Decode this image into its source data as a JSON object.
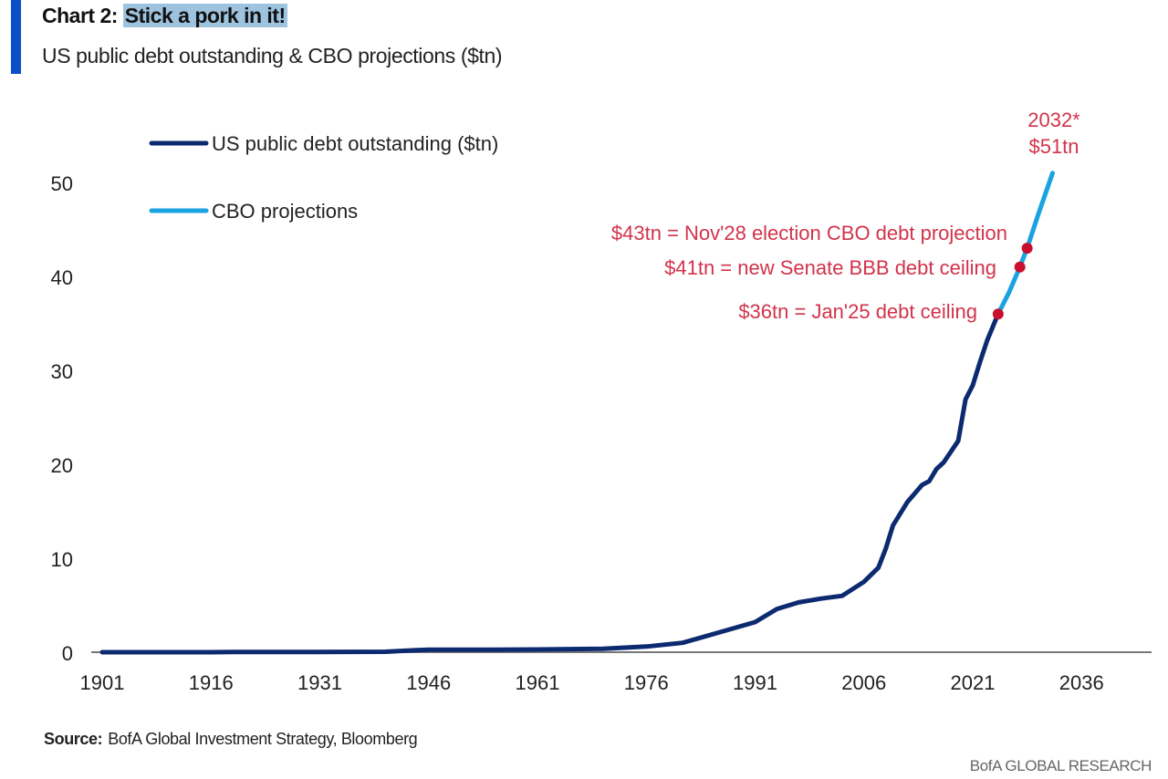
{
  "header": {
    "title_prefix": "Chart 2:",
    "title_highlight": "Stick a pork in it!",
    "subtitle": "US public debt outstanding & CBO projections ($tn)"
  },
  "footer": {
    "source_label": "Source:",
    "source_text": "BofA Global Investment Strategy, Bloomberg",
    "brand": "BofA GLOBAL RESEARCH"
  },
  "colors": {
    "historical": "#0b2a6f",
    "projection": "#1aa3e0",
    "annotation": "#d2334b",
    "marker": "#c8102e",
    "accent_bar": "#0a4fc7"
  },
  "chart_data": {
    "type": "line",
    "title": "Stick a pork in it!",
    "xlabel": "",
    "ylabel": "",
    "xlim": [
      1901,
      2047
    ],
    "ylim": [
      0,
      55
    ],
    "x_ticks": [
      "1901",
      "1916",
      "1931",
      "1946",
      "1961",
      "1976",
      "1991",
      "2006",
      "2021",
      "2036"
    ],
    "y_ticks": [
      "0",
      "10",
      "20",
      "30",
      "40",
      "50"
    ],
    "grid": false,
    "legend": "top-left",
    "series": [
      {
        "name": "US public debt outstanding ($tn)",
        "x": [
          1901,
          1910,
          1916,
          1919,
          1930,
          1940,
          1944,
          1946,
          1955,
          1961,
          1970,
          1976,
          1981,
          1986,
          1991,
          1994,
          1997,
          2000,
          2003,
          2006,
          2008,
          2009,
          2010,
          2012,
          2014,
          2015,
          2016,
          2017,
          2019,
          2020,
          2021,
          2022,
          2023,
          2024.5
        ],
        "y": [
          0.0,
          0.0,
          0.0,
          0.03,
          0.02,
          0.05,
          0.2,
          0.27,
          0.27,
          0.29,
          0.37,
          0.6,
          1.0,
          2.1,
          3.2,
          4.6,
          5.3,
          5.7,
          6.0,
          7.5,
          9.0,
          11.0,
          13.5,
          16.0,
          17.8,
          18.2,
          19.5,
          20.2,
          22.5,
          26.9,
          28.4,
          30.9,
          33.2,
          36.0
        ]
      },
      {
        "name": "CBO projections",
        "x": [
          2024.5,
          2026,
          2027.5,
          2028.5,
          2030,
          2032
        ],
        "y": [
          36.0,
          38.3,
          41.0,
          43.0,
          46.5,
          51.0
        ]
      }
    ],
    "annotations": [
      {
        "text_line1": "2032*",
        "text_line2": "$51tn",
        "x": 2032,
        "y": 51
      },
      {
        "text": "$43tn = Nov'28 election CBO debt projection",
        "x": 2028.5,
        "y": 43
      },
      {
        "text": "$41tn = new Senate BBB debt ceiling",
        "x": 2027.5,
        "y": 41
      },
      {
        "text": "$36tn = Jan'25 debt ceiling",
        "x": 2024.5,
        "y": 36
      }
    ]
  }
}
